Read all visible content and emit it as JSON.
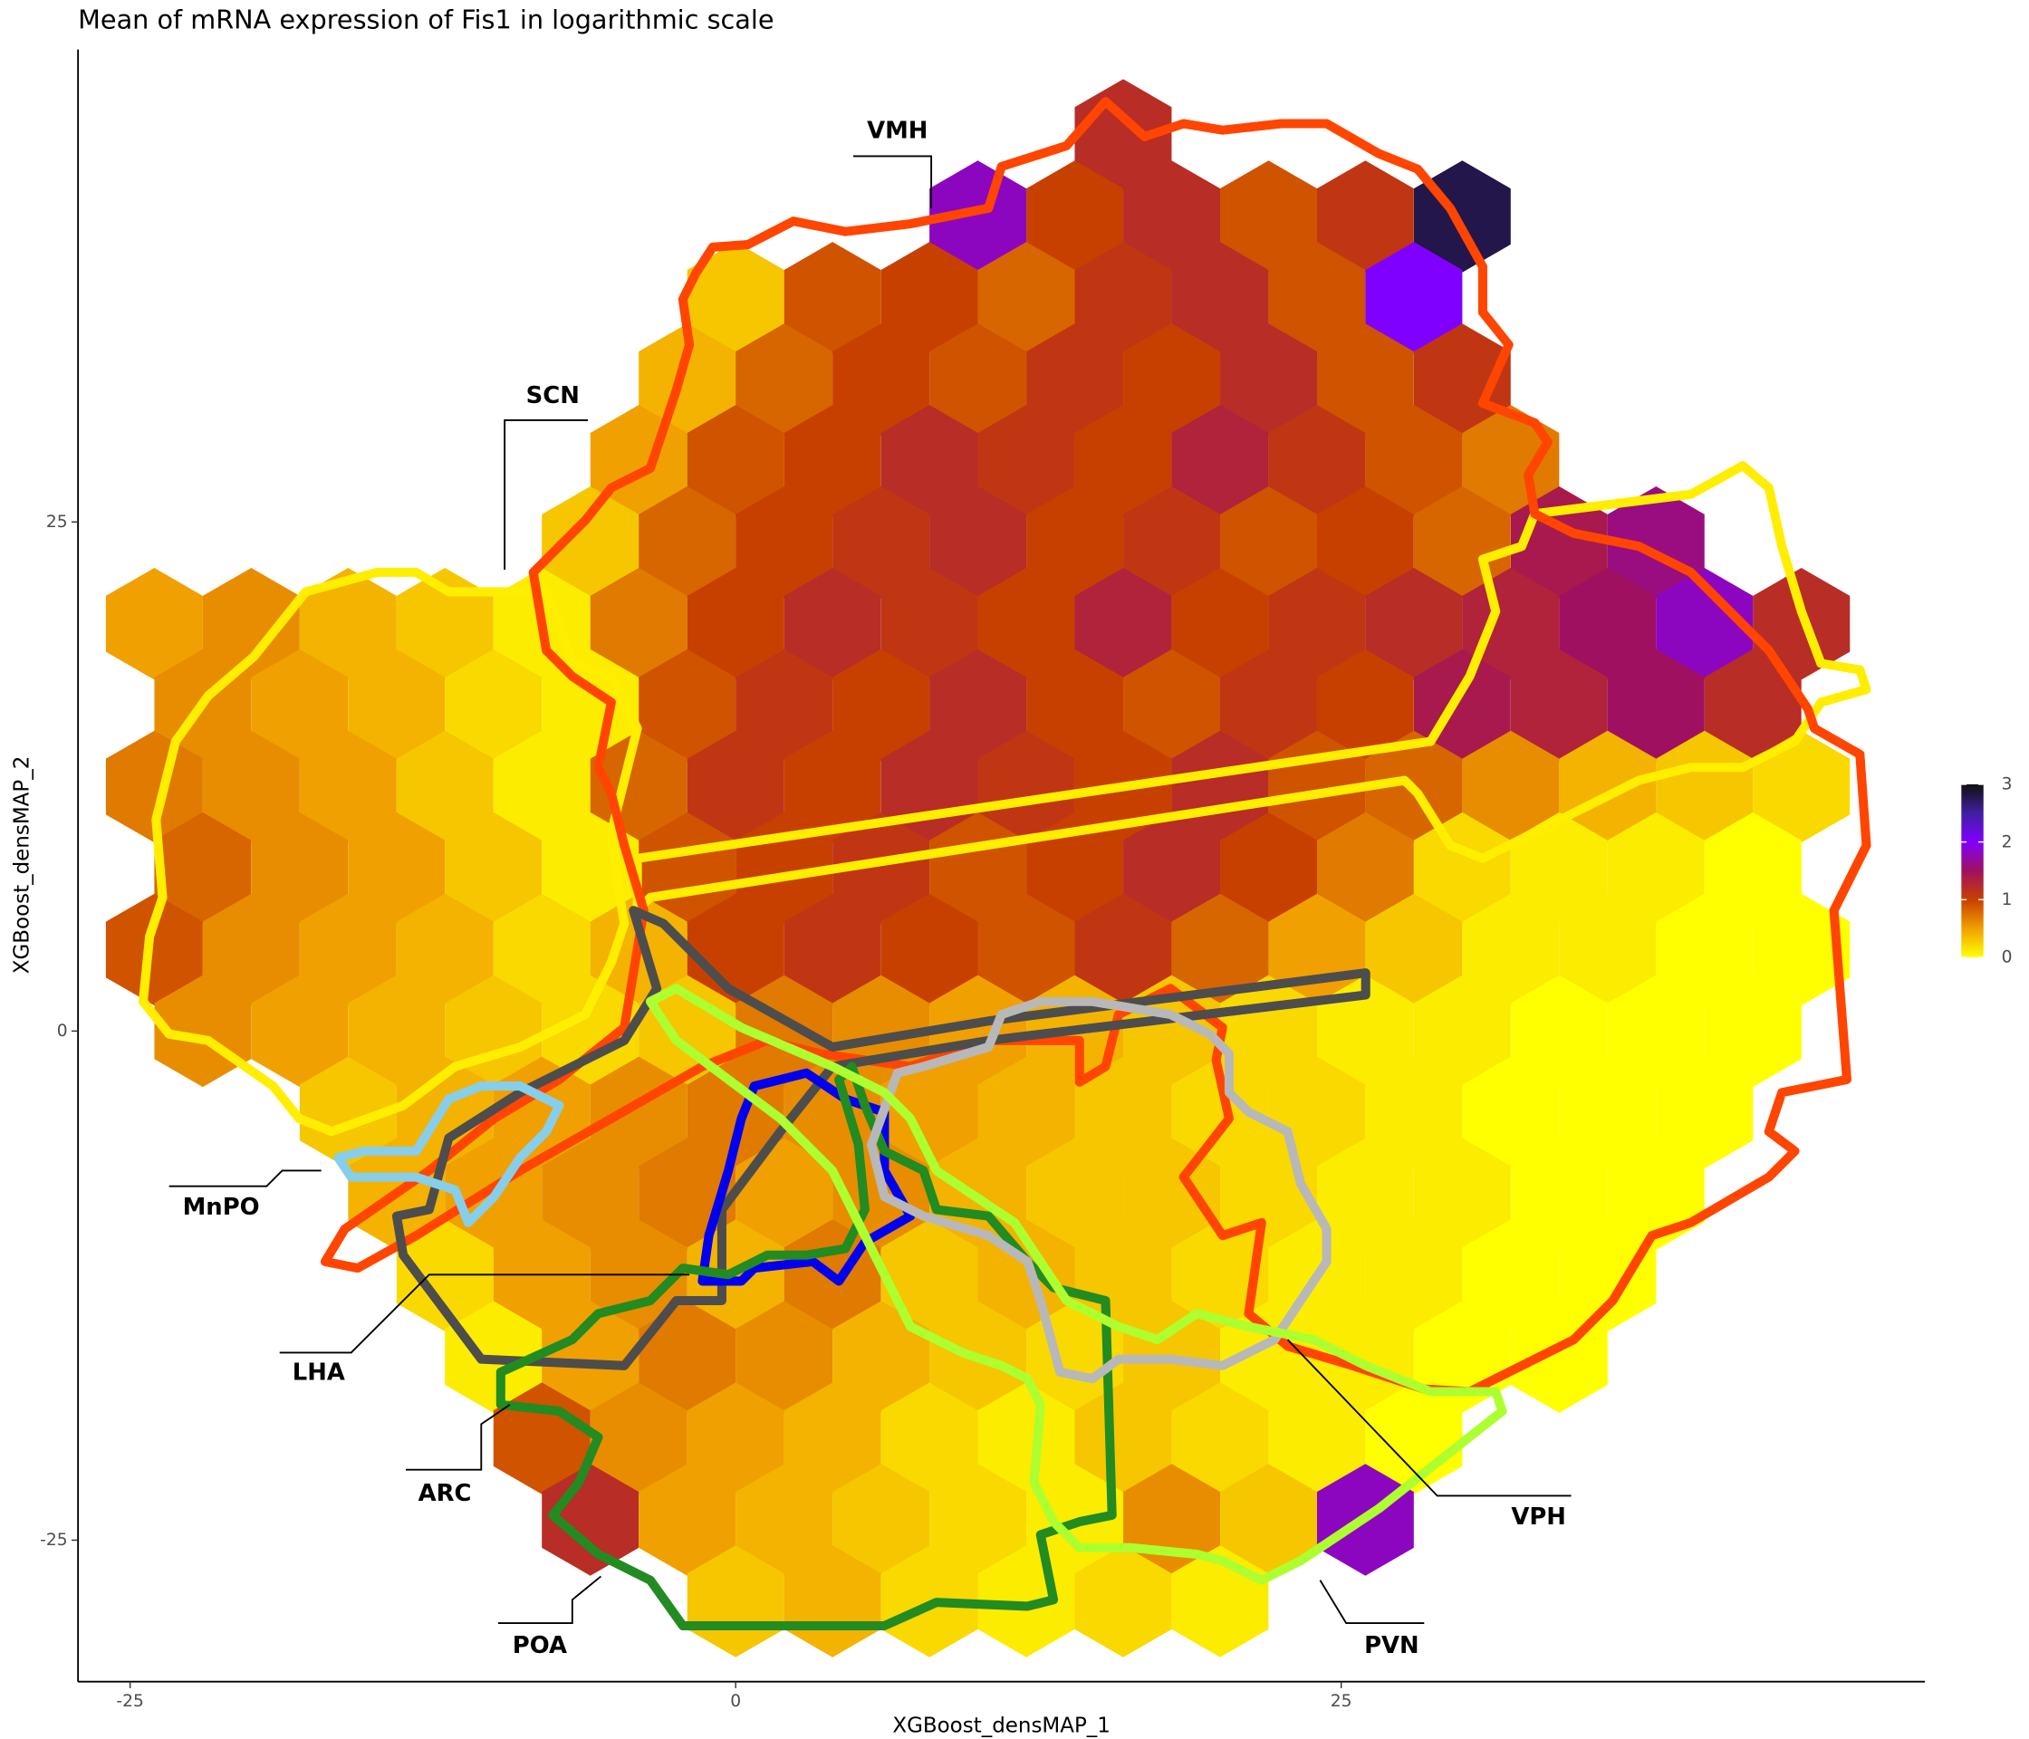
{
  "chart_data": {
    "type": "hexbin",
    "title": "Mean of mRNA expression of Fis1 in logarithmic scale",
    "x_label": "XGBoost_densMAP_1",
    "y_label": "XGBoost_densMAP_2",
    "xlim": [
      -27.15,
      49.1
    ],
    "ylim": [
      -31.95,
      48.2
    ],
    "xticks": [
      -25,
      0,
      25
    ],
    "yticks": [
      -25,
      0,
      25
    ],
    "colorbar": {
      "lim": [
        0,
        3
      ],
      "ticks": [
        0,
        1,
        2,
        3
      ],
      "colors": [
        "#ffff00",
        "#f0a000",
        "#c84000",
        "#a01060",
        "#8000ff",
        "#4020a0",
        "#101010"
      ]
    },
    "annotations": [
      "VMH",
      "SCN",
      "MnPO",
      "LHA",
      "ARC",
      "POA",
      "VPH",
      "PVN"
    ],
    "rows": [
      {
        "y": 44,
        "x": [
          16
        ],
        "values": [
          1.2
        ]
      },
      {
        "y": 40,
        "x": [
          10,
          14,
          18,
          22,
          26,
          30
        ],
        "values": [
          1.8,
          1.0,
          1.2,
          0.9,
          1.1,
          2.8
        ]
      },
      {
        "y": 36,
        "x": [
          0,
          4,
          8,
          12,
          16,
          20,
          24,
          28
        ],
        "values": [
          0.3,
          0.9,
          1.0,
          0.8,
          1.1,
          1.2,
          0.9,
          2.0
        ]
      },
      {
        "y": 32,
        "x": [
          -2,
          2,
          6,
          10,
          14,
          18,
          22,
          26,
          30
        ],
        "values": [
          0.4,
          0.8,
          1.0,
          0.9,
          1.1,
          1.0,
          1.2,
          0.9,
          1.1
        ]
      },
      {
        "y": 28,
        "x": [
          -4,
          0,
          4,
          8,
          12,
          16,
          20,
          24,
          28,
          32
        ],
        "values": [
          0.5,
          0.9,
          1.0,
          1.2,
          1.1,
          1.0,
          1.3,
          1.1,
          0.9,
          0.7
        ]
      },
      {
        "y": 24,
        "x": [
          -6,
          -2,
          2,
          6,
          10,
          14,
          18,
          22,
          26,
          30,
          34,
          38
        ],
        "values": [
          0.3,
          0.8,
          1.0,
          1.1,
          1.2,
          1.0,
          1.1,
          0.9,
          1.0,
          0.8,
          1.4,
          1.6
        ]
      },
      {
        "y": 20,
        "x": [
          -24,
          -20,
          -16,
          -12,
          -8,
          -4,
          0,
          4,
          8,
          12,
          16,
          20,
          24,
          28,
          32,
          36,
          40,
          44
        ],
        "values": [
          0.5,
          0.6,
          0.4,
          0.3,
          0.1,
          0.7,
          1.0,
          1.2,
          1.1,
          1.0,
          1.3,
          1.0,
          1.1,
          1.2,
          1.3,
          1.5,
          1.8,
          1.2
        ]
      },
      {
        "y": 16,
        "x": [
          -22,
          -18,
          -14,
          -10,
          -6,
          -2,
          2,
          6,
          10,
          14,
          18,
          22,
          26,
          30,
          34,
          38,
          42
        ],
        "values": [
          0.6,
          0.5,
          0.4,
          0.2,
          0.1,
          0.9,
          1.1,
          1.0,
          1.2,
          1.0,
          0.9,
          1.1,
          1.0,
          1.4,
          1.3,
          1.5,
          1.2
        ]
      },
      {
        "y": 12,
        "x": [
          -24,
          -20,
          -16,
          -12,
          -8,
          -4,
          0,
          4,
          8,
          12,
          16,
          20,
          24,
          28,
          32,
          36,
          40,
          44
        ],
        "values": [
          0.7,
          0.6,
          0.5,
          0.3,
          0.1,
          0.8,
          1.1,
          1.0,
          1.2,
          1.1,
          1.0,
          1.2,
          0.9,
          0.8,
          0.6,
          0.4,
          0.3,
          0.2
        ]
      },
      {
        "y": 8,
        "x": [
          -22,
          -18,
          -14,
          -10,
          -6,
          -2,
          2,
          6,
          10,
          14,
          18,
          22,
          26,
          30,
          34,
          38,
          42
        ],
        "values": [
          0.8,
          0.6,
          0.5,
          0.3,
          0.1,
          0.9,
          1.0,
          1.1,
          0.9,
          1.0,
          1.2,
          1.0,
          0.7,
          0.2,
          0.1,
          0.1,
          0.0
        ]
      },
      {
        "y": 4,
        "x": [
          -24,
          -20,
          -16,
          -12,
          -8,
          -4,
          0,
          4,
          8,
          12,
          16,
          20,
          24,
          28,
          32,
          36,
          40,
          44
        ],
        "values": [
          0.9,
          0.6,
          0.5,
          0.4,
          0.2,
          0.4,
          1.0,
          1.1,
          1.0,
          0.9,
          1.1,
          0.8,
          0.5,
          0.3,
          0.1,
          0.1,
          0.0,
          0.0
        ]
      },
      {
        "y": 0,
        "x": [
          -22,
          -18,
          -14,
          -10,
          -6,
          -2,
          2,
          6,
          10,
          14,
          18,
          22,
          26,
          30,
          34,
          38,
          42
        ],
        "values": [
          0.6,
          0.5,
          0.4,
          0.3,
          0.2,
          0.3,
          0.7,
          0.6,
          0.5,
          0.4,
          0.3,
          0.2,
          0.1,
          0.1,
          0.0,
          0.0,
          0.0
        ]
      },
      {
        "y": -4,
        "x": [
          -16,
          -12,
          -8,
          -4,
          0,
          4,
          8,
          12,
          16,
          20,
          24,
          28,
          32,
          36,
          40
        ],
        "values": [
          0.3,
          0.4,
          0.5,
          0.6,
          0.7,
          0.6,
          0.5,
          0.4,
          0.3,
          0.2,
          0.2,
          0.1,
          0.0,
          0.0,
          0.0
        ]
      },
      {
        "y": -8,
        "x": [
          -14,
          -10,
          -6,
          -2,
          2,
          6,
          10,
          14,
          18,
          22,
          26,
          30,
          34,
          38
        ],
        "values": [
          0.4,
          0.5,
          0.6,
          0.7,
          0.5,
          0.6,
          0.4,
          0.3,
          0.3,
          0.2,
          0.1,
          0.1,
          0.0,
          0.0
        ]
      },
      {
        "y": -12,
        "x": [
          -12,
          -8,
          -4,
          0,
          4,
          8,
          12,
          16,
          20,
          24,
          28,
          32,
          36
        ],
        "values": [
          0.2,
          0.5,
          0.6,
          0.4,
          0.7,
          0.3,
          0.4,
          0.3,
          0.2,
          0.1,
          0.1,
          0.0,
          0.0
        ]
      },
      {
        "y": -16,
        "x": [
          -10,
          -6,
          -2,
          2,
          6,
          10,
          14,
          18,
          22,
          26,
          30,
          34
        ],
        "values": [
          0.1,
          0.5,
          0.7,
          0.6,
          0.4,
          0.3,
          0.2,
          0.3,
          0.1,
          0.1,
          0.0,
          0.0
        ]
      },
      {
        "y": -20,
        "x": [
          -8,
          -4,
          0,
          4,
          8,
          12,
          16,
          20,
          24,
          28
        ],
        "values": [
          0.9,
          0.6,
          0.5,
          0.4,
          0.2,
          0.1,
          0.3,
          0.2,
          0.1,
          0.0
        ]
      },
      {
        "y": -24,
        "x": [
          -6,
          -2,
          2,
          6,
          10,
          14,
          18,
          22,
          26
        ],
        "values": [
          1.2,
          0.5,
          0.4,
          0.3,
          0.2,
          0.1,
          0.6,
          0.3,
          1.8
        ]
      },
      {
        "y": -28,
        "x": [
          0,
          4,
          8,
          12,
          16,
          20
        ],
        "values": [
          0.3,
          0.4,
          0.2,
          0.1,
          0.2,
          0.1
        ]
      }
    ]
  }
}
